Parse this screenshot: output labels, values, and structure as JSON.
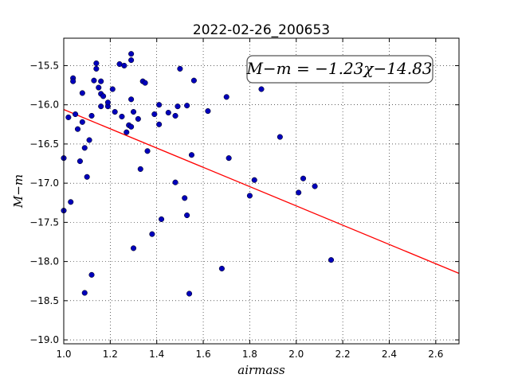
{
  "chart_data": {
    "type": "scatter",
    "title": "2022-02-26_200653",
    "xlabel": "airmass",
    "ylabel": "M−m",
    "xlim": [
      1.0,
      2.7
    ],
    "ylim": [
      -19.05,
      -15.15
    ],
    "x_ticks": [
      "1.0",
      "1.2",
      "1.4",
      "1.6",
      "1.8",
      "2.0",
      "2.2",
      "2.4",
      "2.6"
    ],
    "y_ticks": [
      "−15.5",
      "−16.0",
      "−16.5",
      "−17.0",
      "−17.5",
      "−18.0",
      "−18.5",
      "−19.0"
    ],
    "grid": true,
    "annotation": "M−m = −1.23χ−14.83",
    "fit_line": {
      "slope": -1.23,
      "intercept": -14.83,
      "color": "#ff0000"
    },
    "marker_color": "#0000bb",
    "points": [
      [
        1.0,
        -16.68
      ],
      [
        1.0,
        -17.35
      ],
      [
        1.02,
        -16.16
      ],
      [
        1.03,
        -17.24
      ],
      [
        1.04,
        -15.66
      ],
      [
        1.04,
        -15.7
      ],
      [
        1.05,
        -16.12
      ],
      [
        1.06,
        -16.31
      ],
      [
        1.07,
        -16.72
      ],
      [
        1.08,
        -15.85
      ],
      [
        1.08,
        -16.22
      ],
      [
        1.09,
        -16.55
      ],
      [
        1.09,
        -18.4
      ],
      [
        1.1,
        -16.92
      ],
      [
        1.11,
        -16.45
      ],
      [
        1.12,
        -16.14
      ],
      [
        1.12,
        -18.17
      ],
      [
        1.13,
        -15.69
      ],
      [
        1.14,
        -15.47
      ],
      [
        1.14,
        -15.54
      ],
      [
        1.15,
        -15.78
      ],
      [
        1.16,
        -15.86
      ],
      [
        1.16,
        -15.7
      ],
      [
        1.16,
        -16.02
      ],
      [
        1.17,
        -15.89
      ],
      [
        1.19,
        -16.02
      ],
      [
        1.19,
        -15.97
      ],
      [
        1.21,
        -15.8
      ],
      [
        1.22,
        -16.09
      ],
      [
        1.24,
        -15.48
      ],
      [
        1.25,
        -16.15
      ],
      [
        1.26,
        -15.5
      ],
      [
        1.27,
        -16.35
      ],
      [
        1.28,
        -16.26
      ],
      [
        1.29,
        -15.35
      ],
      [
        1.29,
        -15.43
      ],
      [
        1.29,
        -15.93
      ],
      [
        1.29,
        -16.28
      ],
      [
        1.3,
        -16.09
      ],
      [
        1.3,
        -17.83
      ],
      [
        1.32,
        -16.18
      ],
      [
        1.33,
        -16.82
      ],
      [
        1.34,
        -15.7
      ],
      [
        1.35,
        -15.72
      ],
      [
        1.36,
        -16.59
      ],
      [
        1.38,
        -17.65
      ],
      [
        1.39,
        -16.12
      ],
      [
        1.41,
        -16.25
      ],
      [
        1.41,
        -16.0
      ],
      [
        1.42,
        -17.46
      ],
      [
        1.45,
        -16.1
      ],
      [
        1.48,
        -16.14
      ],
      [
        1.48,
        -16.99
      ],
      [
        1.49,
        -16.02
      ],
      [
        1.5,
        -15.54
      ],
      [
        1.52,
        -17.19
      ],
      [
        1.53,
        -17.41
      ],
      [
        1.53,
        -16.01
      ],
      [
        1.54,
        -18.41
      ],
      [
        1.55,
        -16.64
      ],
      [
        1.56,
        -15.69
      ],
      [
        1.62,
        -16.08
      ],
      [
        1.68,
        -18.09
      ],
      [
        1.7,
        -15.9
      ],
      [
        1.71,
        -16.68
      ],
      [
        1.8,
        -17.16
      ],
      [
        1.82,
        -16.96
      ],
      [
        1.85,
        -15.8
      ],
      [
        1.93,
        -16.41
      ],
      [
        2.01,
        -17.12
      ],
      [
        2.03,
        -16.94
      ],
      [
        2.08,
        -17.04
      ],
      [
        2.15,
        -17.98
      ]
    ]
  }
}
